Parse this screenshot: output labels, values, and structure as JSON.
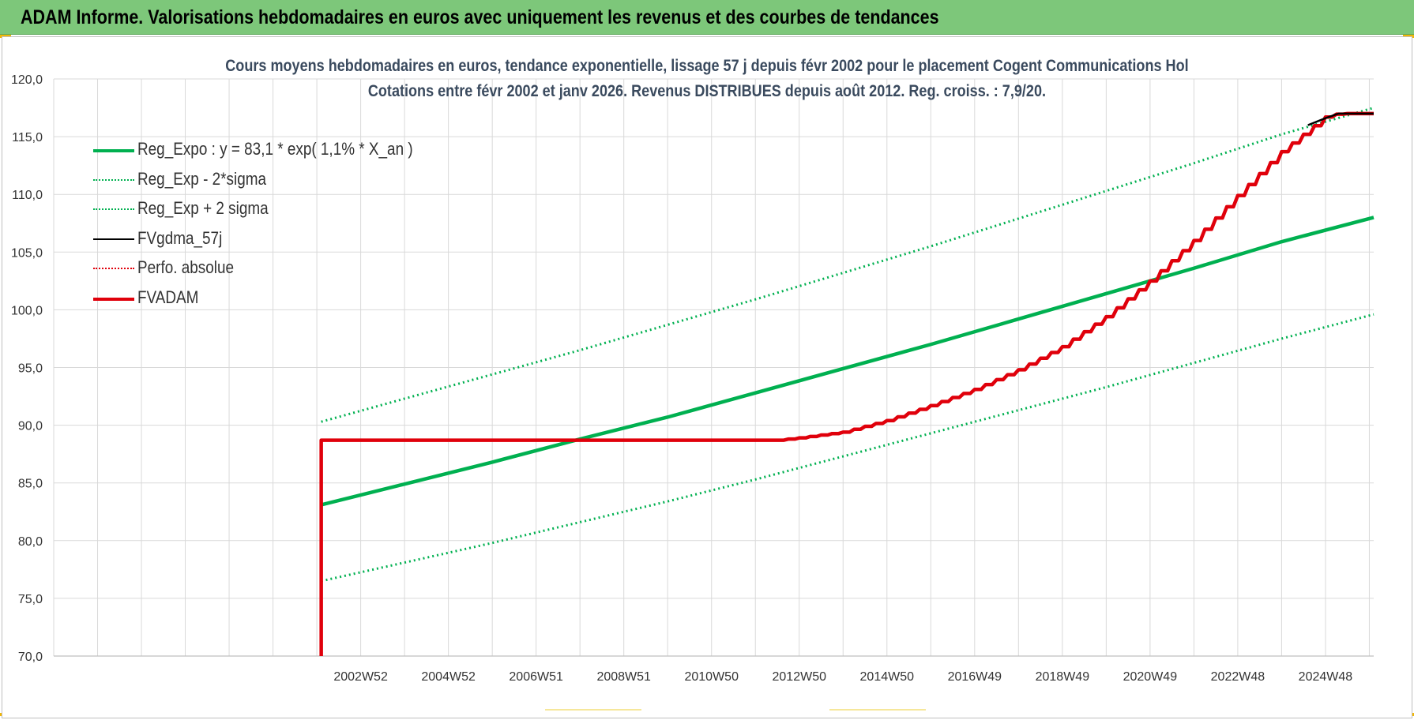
{
  "banner": {
    "title": "ADAM Informe. Valorisations hebdomadaires en euros avec uniquement les revenus et des courbes de tendances"
  },
  "colors": {
    "banner": "#7dc77a",
    "accent": "#f2b705",
    "green": "#00b050",
    "red": "#e0000b",
    "black": "#000000"
  },
  "chart_data": {
    "type": "line",
    "title": "Cours moyens hebdomadaires en euros, tendance exponentielle, lissage 57 j depuis févr 2002 pour le placement Cogent Communications Hol",
    "subtitle": "Cotations entre févr 2002 et janv 2026. Revenus DISTRIBUES depuis août 2012. Reg. croiss. : 7,9/20.",
    "xlabel": "",
    "ylabel": "",
    "ylim": [
      70,
      120
    ],
    "xlim": [
      1996.0,
      2026.1
    ],
    "y_ticks": [
      "70,0",
      "75,0",
      "80,0",
      "85,0",
      "90,0",
      "95,0",
      "100,0",
      "105,0",
      "110,0",
      "115,0",
      "120,0"
    ],
    "x_ticks": [
      {
        "x": 2003.0,
        "label": "2002W52"
      },
      {
        "x": 2005.0,
        "label": "2004W52"
      },
      {
        "x": 2007.0,
        "label": "2006W51"
      },
      {
        "x": 2009.0,
        "label": "2008W51"
      },
      {
        "x": 2011.0,
        "label": "2010W50"
      },
      {
        "x": 2013.0,
        "label": "2012W50"
      },
      {
        "x": 2015.0,
        "label": "2014W50"
      },
      {
        "x": 2017.0,
        "label": "2016W49"
      },
      {
        "x": 2019.0,
        "label": "2018W49"
      },
      {
        "x": 2021.0,
        "label": "2020W49"
      },
      {
        "x": 2023.0,
        "label": "2022W48"
      },
      {
        "x": 2025.0,
        "label": "2024W48"
      }
    ],
    "grid": true,
    "legend_position": "top-left",
    "series": [
      {
        "name": "Reg_Expo : y = 83,1 * exp( 1,1% *  X_an )",
        "color": "#00b050",
        "style": "solid-thick",
        "x": [
          2002.1,
          2004,
          2006,
          2008,
          2010,
          2012,
          2014,
          2016,
          2018,
          2020,
          2022,
          2024,
          2026.1
        ],
        "y": [
          83.1,
          84.9,
          86.8,
          88.8,
          90.7,
          92.8,
          94.9,
          97.0,
          99.2,
          101.4,
          103.6,
          105.9,
          108.0
        ]
      },
      {
        "name": "Reg_Exp - 2*sigma",
        "color": "#00b050",
        "style": "dotted",
        "x": [
          2002.1,
          2004,
          2006,
          2008,
          2010,
          2012,
          2014,
          2016,
          2018,
          2020,
          2022,
          2024,
          2026.1
        ],
        "y": [
          76.5,
          78.1,
          79.8,
          81.6,
          83.4,
          85.3,
          87.3,
          89.3,
          91.3,
          93.3,
          95.4,
          97.5,
          99.6
        ]
      },
      {
        "name": "Reg_Exp + 2 sigma",
        "color": "#00b050",
        "style": "dotted",
        "x": [
          2002.1,
          2004,
          2006,
          2008,
          2010,
          2012,
          2014,
          2016,
          2018,
          2020,
          2022,
          2024,
          2026.1
        ],
        "y": [
          90.3,
          92.3,
          94.4,
          96.5,
          98.7,
          100.9,
          103.2,
          105.5,
          107.9,
          110.3,
          112.7,
          115.2,
          117.5
        ]
      },
      {
        "name": "FVgdma_57j",
        "color": "#000000",
        "style": "solid",
        "x": [
          2024.6,
          2025.0,
          2025.3,
          2025.5,
          2026.1
        ],
        "y": [
          116.0,
          116.6,
          117.0,
          117.0,
          117.0
        ]
      },
      {
        "name": "Perfo. absolue",
        "color": "#e0000b",
        "style": "dotted",
        "x": [],
        "y": []
      },
      {
        "name": "FVADAM",
        "color": "#e0000b",
        "style": "solid-thick",
        "x": [
          2002.1,
          2002.1,
          2012.5,
          2013.0,
          2014.0,
          2015.0,
          2016.0,
          2017.0,
          2018.0,
          2019.0,
          2020.0,
          2021.0,
          2022.0,
          2023.0,
          2024.0,
          2025.0,
          2025.3,
          2026.1
        ],
        "y": [
          70.0,
          88.7,
          88.7,
          88.9,
          89.4,
          90.4,
          91.7,
          93.1,
          94.8,
          96.8,
          99.4,
          102.5,
          106.0,
          109.9,
          113.7,
          116.7,
          117.0,
          117.0
        ]
      }
    ]
  }
}
